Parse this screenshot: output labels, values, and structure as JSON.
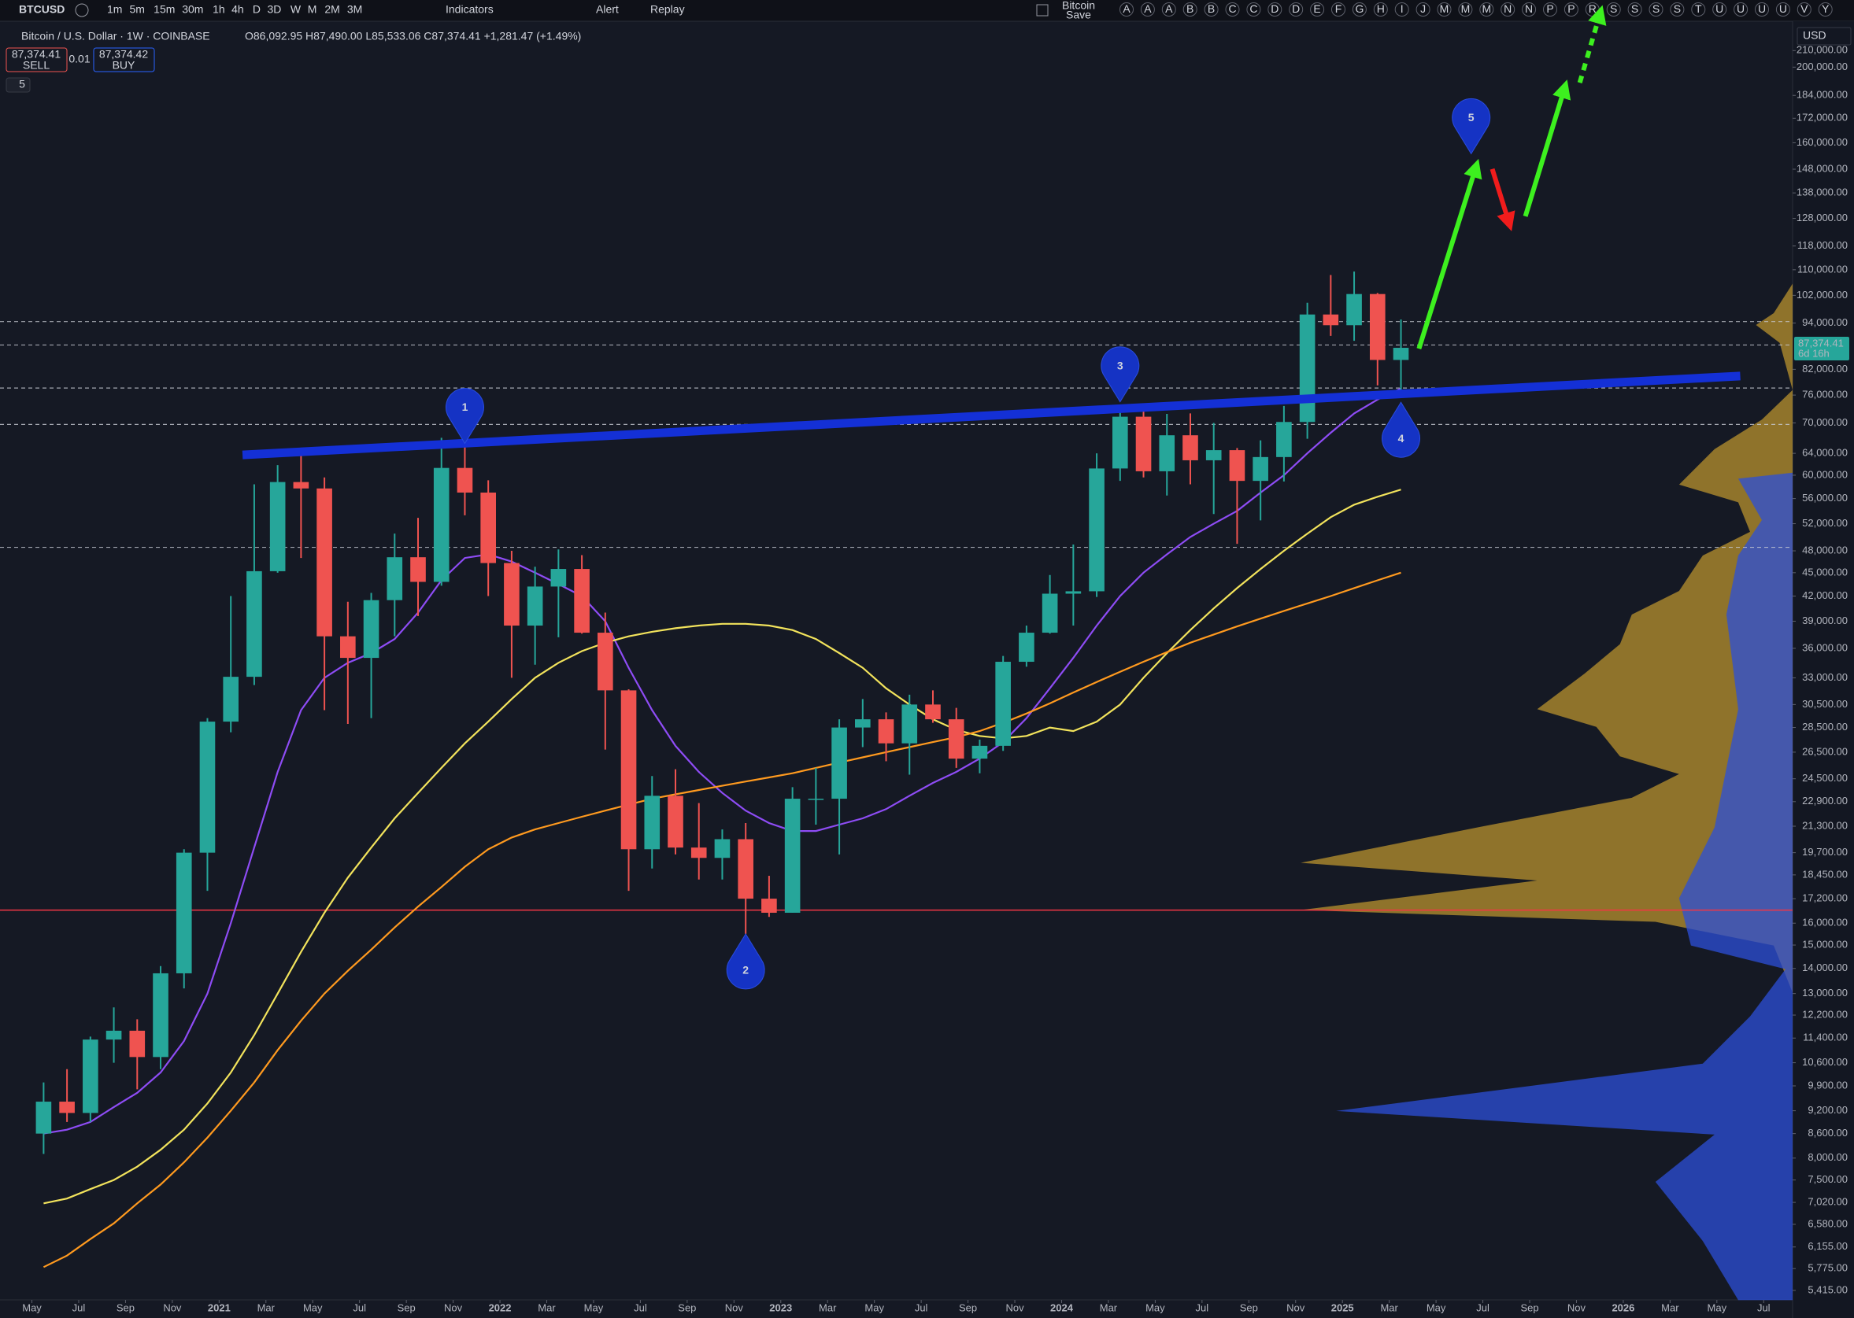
{
  "toolbar": {
    "symbol": "BTCUSD",
    "intervals": [
      "1m",
      "5m",
      "15m",
      "30m",
      "1h",
      "4h",
      "D",
      "3D",
      "W",
      "M",
      "2M",
      "3M"
    ],
    "indicators": "Indicators",
    "alert": "Alert",
    "replay": "Replay",
    "layout_name": "Bitcoin",
    "layout_status": "Save",
    "letters": [
      "A",
      "A",
      "A",
      "B",
      "B",
      "C",
      "C",
      "D",
      "D",
      "E",
      "F",
      "G",
      "H",
      "I",
      "J",
      "M",
      "M",
      "M",
      "N",
      "N",
      "P",
      "P",
      "R",
      "S",
      "S",
      "S",
      "S",
      "T",
      "U",
      "U",
      "U",
      "U",
      "V",
      "Y"
    ]
  },
  "legend": {
    "title": "Bitcoin / U.S. Dollar · 1W · COINBASE",
    "ohlc": "O86,092.95 H87,490.00 L85,533.06 C87,374.41 +1,281.47 (+1.49%)",
    "sell_price": "87,374.41",
    "sell": "SELL",
    "spread": "0.01",
    "buy_price": "87,374.42",
    "buy": "BUY",
    "collapsed_count": "5"
  },
  "currency": "USD",
  "last_price": {
    "label": "87,374.41",
    "countdown": "6d 16h"
  },
  "chart_data": {
    "type": "candlestick",
    "log_scale": true,
    "grid": false,
    "up_color": "#26a69a",
    "down_color": "#ef5350",
    "x": [
      "2020-05",
      "2020-06",
      "2020-07",
      "2020-08",
      "2020-09",
      "2020-10",
      "2020-11",
      "2020-12",
      "2021-01",
      "2021-02",
      "2021-03",
      "2021-04",
      "2021-05",
      "2021-06",
      "2021-07",
      "2021-08",
      "2021-09",
      "2021-10",
      "2021-11",
      "2021-12",
      "2022-01",
      "2022-02",
      "2022-03",
      "2022-04",
      "2022-05",
      "2022-06",
      "2022-07",
      "2022-08",
      "2022-09",
      "2022-10",
      "2022-11",
      "2022-12",
      "2023-01",
      "2023-02",
      "2023-03",
      "2023-04",
      "2023-05",
      "2023-06",
      "2023-07",
      "2023-08",
      "2023-09",
      "2023-10",
      "2023-11",
      "2023-12",
      "2024-01",
      "2024-02",
      "2024-03",
      "2024-04",
      "2024-05",
      "2024-06",
      "2024-07",
      "2024-08",
      "2024-09",
      "2024-10",
      "2024-11",
      "2024-12",
      "2025-01",
      "2025-02",
      "2025-03"
    ],
    "open": [
      8600,
      9450,
      9140,
      11350,
      11650,
      10780,
      13800,
      19700,
      29000,
      33100,
      45200,
      58800,
      57700,
      37300,
      35000,
      41500,
      47100,
      43800,
      61300,
      57000,
      46300,
      38500,
      43200,
      45500,
      37700,
      31800,
      19900,
      23300,
      20000,
      19400,
      20500,
      17200,
      16500,
      23100,
      23100,
      28500,
      29200,
      27200,
      30500,
      29200,
      26000,
      27000,
      34600,
      37700,
      42300,
      42600,
      61200,
      71300,
      60700,
      67500,
      62700,
      64600,
      59000,
      63300,
      70200,
      96400,
      93400,
      102400,
      84300
    ],
    "high": [
      10000,
      10400,
      11450,
      12480,
      12050,
      14100,
      19900,
      29300,
      42000,
      58400,
      61800,
      64900,
      59600,
      41300,
      42400,
      50500,
      52900,
      67000,
      69000,
      59100,
      48000,
      45800,
      48200,
      47400,
      40000,
      31900,
      24700,
      25200,
      22800,
      21100,
      21500,
      18400,
      23900,
      25300,
      29200,
      31000,
      29800,
      31400,
      31800,
      30200,
      27500,
      35200,
      38500,
      44700,
      48900,
      64000,
      73800,
      72700,
      71900,
      72000,
      70000,
      65000,
      66500,
      73600,
      99800,
      108300,
      109400,
      102700,
      95000
    ],
    "low": [
      8100,
      8900,
      8900,
      10600,
      9800,
      10400,
      13200,
      17600,
      28100,
      32300,
      45000,
      47000,
      30000,
      28800,
      29300,
      37300,
      39600,
      43300,
      53300,
      42000,
      33000,
      34300,
      37200,
      37600,
      26700,
      17600,
      18800,
      19600,
      18200,
      18200,
      15500,
      16300,
      16500,
      21400,
      19600,
      26900,
      25800,
      24800,
      28900,
      25300,
      24900,
      26600,
      34100,
      37600,
      38500,
      41900,
      59000,
      59600,
      56500,
      58400,
      53500,
      49000,
      52500,
      58900,
      66800,
      90500,
      89200,
      78200,
      76600
    ],
    "close": [
      9450,
      9140,
      11350,
      11650,
      10780,
      13800,
      19700,
      29000,
      33100,
      45200,
      58800,
      57700,
      37300,
      35000,
      41500,
      47100,
      43800,
      61300,
      57000,
      46300,
      38500,
      43200,
      45500,
      37700,
      31800,
      19900,
      23300,
      20000,
      19400,
      20500,
      17200,
      16500,
      23100,
      23100,
      28500,
      29200,
      27200,
      30500,
      29200,
      26000,
      27000,
      34600,
      37700,
      42300,
      42600,
      61200,
      71300,
      60700,
      67500,
      62700,
      64600,
      59000,
      63300,
      70200,
      96400,
      93400,
      102400,
      84300,
      87374.41
    ],
    "series": [
      {
        "color": "#8e4cf5",
        "values": [
          8600,
          8700,
          8900,
          9300,
          9700,
          10300,
          11300,
          13000,
          16000,
          20000,
          25000,
          30000,
          33000,
          34500,
          35500,
          37000,
          40000,
          44000,
          47000,
          47500,
          46500,
          45000,
          43500,
          42000,
          39000,
          34000,
          30000,
          27000,
          25000,
          23500,
          22300,
          21500,
          21000,
          21000,
          21400,
          21800,
          22400,
          23300,
          24200,
          25000,
          26000,
          27300,
          29300,
          32000,
          35000,
          38500,
          42000,
          45000,
          47500,
          50000,
          52000,
          54000,
          57000,
          60000,
          64000,
          68000,
          72000,
          75000,
          77500
        ]
      },
      {
        "color": "#f2e35c",
        "values": [
          7000,
          7100,
          7300,
          7500,
          7800,
          8200,
          8700,
          9400,
          10300,
          11500,
          13000,
          14700,
          16500,
          18300,
          20000,
          21800,
          23500,
          25300,
          27200,
          29000,
          31000,
          33000,
          34500,
          35700,
          36600,
          37300,
          37800,
          38200,
          38500,
          38700,
          38700,
          38500,
          38000,
          37000,
          35500,
          34000,
          32000,
          30500,
          29200,
          28300,
          27800,
          27600,
          27800,
          28500,
          28200,
          29000,
          30500,
          33000,
          35500,
          38000,
          40500,
          43000,
          45500,
          48000,
          50500,
          53000,
          55000,
          56300,
          57500
        ]
      },
      {
        "color": "#ff9a1f",
        "values": [
          5800,
          6000,
          6300,
          6600,
          7000,
          7400,
          7900,
          8500,
          9200,
          10000,
          11000,
          12000,
          13000,
          13900,
          14800,
          15800,
          16800,
          17800,
          18900,
          19900,
          20600,
          21100,
          21500,
          21900,
          22300,
          22700,
          23100,
          23400,
          23700,
          24000,
          24300,
          24600,
          24900,
          25300,
          25700,
          26100,
          26500,
          26900,
          27300,
          27700,
          28200,
          28900,
          29700,
          30600,
          31600,
          32600,
          33600,
          34600,
          35600,
          36600,
          37500,
          38400,
          39300,
          40200,
          41100,
          42000,
          43000,
          44000,
          45000
        ]
      }
    ],
    "levels": {
      "dashed": [
        94400,
        88100,
        77600,
        69700,
        48500
      ],
      "dashed_color": "#c8cbd4",
      "solid": [
        16630
      ],
      "solid_color": "#f23645"
    },
    "trendline": {
      "x": [
        "2021-02",
        "2026-06"
      ],
      "values": [
        63700,
        80400
      ],
      "color": "#1430d6"
    },
    "annotations": [
      {
        "label": "1",
        "x": "2021-11",
        "y": 65900,
        "pointer": "down"
      },
      {
        "label": "2",
        "x": "2022-11",
        "y": 15500,
        "pointer": "up"
      },
      {
        "label": "3",
        "x": "2024-03",
        "y": 74500,
        "pointer": "down"
      },
      {
        "label": "4",
        "x": "2025-03",
        "y": 74400,
        "pointer": "up"
      },
      {
        "label": "5",
        "x": "2025-06",
        "y": 154900,
        "pointer": "down"
      }
    ],
    "annotation_color": "#1533c4",
    "ylim": [
      5265,
      229000
    ],
    "yticks": [
      {
        "value": 210000,
        "label": "210,000.00"
      },
      {
        "value": 200000,
        "label": "200,000.00"
      },
      {
        "value": 184000,
        "label": "184,000.00"
      },
      {
        "value": 172000,
        "label": "172,000.00"
      },
      {
        "value": 160000,
        "label": "160,000.00"
      },
      {
        "value": 148000,
        "label": "148,000.00"
      },
      {
        "value": 138000,
        "label": "138,000.00"
      },
      {
        "value": 128000,
        "label": "128,000.00"
      },
      {
        "value": 118000,
        "label": "118,000.00"
      },
      {
        "value": 110000,
        "label": "110,000.00"
      },
      {
        "value": 102000,
        "label": "102,000.00"
      },
      {
        "value": 94000,
        "label": "94,000.00"
      },
      {
        "value": 82000,
        "label": "82,000.00"
      },
      {
        "value": 76000,
        "label": "76,000.00"
      },
      {
        "value": 70000,
        "label": "70,000.00"
      },
      {
        "value": 64000,
        "label": "64,000.00"
      },
      {
        "value": 60000,
        "label": "60,000.00"
      },
      {
        "value": 56000,
        "label": "56,000.00"
      },
      {
        "value": 52000,
        "label": "52,000.00"
      },
      {
        "value": 48000,
        "label": "48,000.00"
      },
      {
        "value": 45000,
        "label": "45,000.00"
      },
      {
        "value": 42000,
        "label": "42,000.00"
      },
      {
        "value": 39000,
        "label": "39,000.00"
      },
      {
        "value": 36000,
        "label": "36,000.00"
      },
      {
        "value": 33000,
        "label": "33,000.00"
      },
      {
        "value": 30500,
        "label": "30,500.00"
      },
      {
        "value": 28500,
        "label": "28,500.00"
      },
      {
        "value": 26500,
        "label": "26,500.00"
      },
      {
        "value": 24500,
        "label": "24,500.00"
      },
      {
        "value": 22900,
        "label": "22,900.00"
      },
      {
        "value": 21300,
        "label": "21,300.00"
      },
      {
        "value": 19700,
        "label": "19,700.00"
      },
      {
        "value": 18450,
        "label": "18,450.00"
      },
      {
        "value": 17200,
        "label": "17,200.00"
      },
      {
        "value": 16000,
        "label": "16,000.00"
      },
      {
        "value": 15000,
        "label": "15,000.00"
      },
      {
        "value": 14000,
        "label": "14,000.00"
      },
      {
        "value": 13000,
        "label": "13,000.00"
      },
      {
        "value": 12200,
        "label": "12,200.00"
      },
      {
        "value": 11400,
        "label": "11,400.00"
      },
      {
        "value": 10600,
        "label": "10,600.00"
      },
      {
        "value": 9900,
        "label": "9,900.00"
      },
      {
        "value": 9200,
        "label": "9,200.00"
      },
      {
        "value": 8600,
        "label": "8,600.00"
      },
      {
        "value": 8000,
        "label": "8,000.00"
      },
      {
        "value": 7500,
        "label": "7,500.00"
      },
      {
        "value": 7020,
        "label": "7,020.00"
      },
      {
        "value": 6580,
        "label": "6,580.00"
      },
      {
        "value": 6155,
        "label": "6,155.00"
      },
      {
        "value": 5775,
        "label": "5,775.00"
      },
      {
        "value": 5415,
        "label": "5,415.00"
      }
    ],
    "xlim": [
      "2020-04",
      "2026-08"
    ],
    "xticks": [
      {
        "value": "2020-05",
        "label": "May"
      },
      {
        "value": "2020-07",
        "label": "Jul"
      },
      {
        "value": "2020-09",
        "label": "Sep"
      },
      {
        "value": "2020-11",
        "label": "Nov"
      },
      {
        "value": "2021-01",
        "label": "2021"
      },
      {
        "value": "2021-03",
        "label": "Mar"
      },
      {
        "value": "2021-05",
        "label": "May"
      },
      {
        "value": "2021-07",
        "label": "Jul"
      },
      {
        "value": "2021-09",
        "label": "Sep"
      },
      {
        "value": "2021-11",
        "label": "Nov"
      },
      {
        "value": "2022-01",
        "label": "2022"
      },
      {
        "value": "2022-03",
        "label": "Mar"
      },
      {
        "value": "2022-05",
        "label": "May"
      },
      {
        "value": "2022-07",
        "label": "Jul"
      },
      {
        "value": "2022-09",
        "label": "Sep"
      },
      {
        "value": "2022-11",
        "label": "Nov"
      },
      {
        "value": "2023-01",
        "label": "2023"
      },
      {
        "value": "2023-03",
        "label": "Mar"
      },
      {
        "value": "2023-05",
        "label": "May"
      },
      {
        "value": "2023-07",
        "label": "Jul"
      },
      {
        "value": "2023-09",
        "label": "Sep"
      },
      {
        "value": "2023-11",
        "label": "Nov"
      },
      {
        "value": "2024-01",
        "label": "2024"
      },
      {
        "value": "2024-03",
        "label": "Mar"
      },
      {
        "value": "2024-05",
        "label": "May"
      },
      {
        "value": "2024-07",
        "label": "Jul"
      },
      {
        "value": "2024-09",
        "label": "Sep"
      },
      {
        "value": "2024-11",
        "label": "Nov"
      },
      {
        "value": "2025-01",
        "label": "2025"
      },
      {
        "value": "2025-03",
        "label": "Mar"
      },
      {
        "value": "2025-05",
        "label": "May"
      },
      {
        "value": "2025-07",
        "label": "Jul"
      },
      {
        "value": "2025-09",
        "label": "Sep"
      },
      {
        "value": "2025-11",
        "label": "Nov"
      },
      {
        "value": "2026-01",
        "label": "2026"
      },
      {
        "value": "2026-03",
        "label": "Mar"
      },
      {
        "value": "2026-05",
        "label": "May"
      },
      {
        "value": "2026-07",
        "label": "Jul"
      }
    ]
  }
}
